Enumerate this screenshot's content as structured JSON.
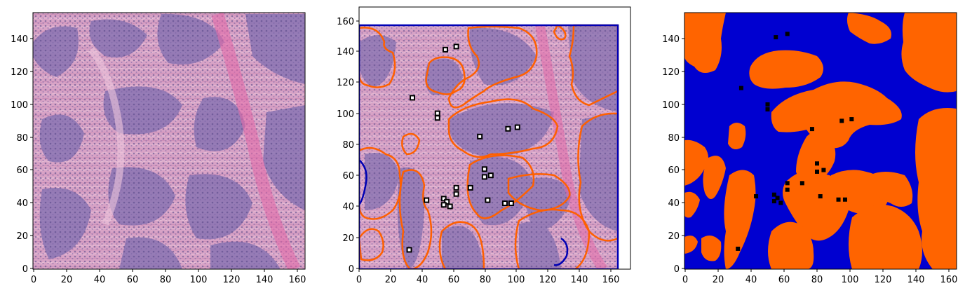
{
  "figure": {
    "panels": [
      {
        "id": "he-image",
        "xticks": [
          "0",
          "20",
          "40",
          "60",
          "80",
          "100",
          "120",
          "140",
          "160"
        ],
        "yticks": [
          "0",
          "20",
          "40",
          "60",
          "80",
          "100",
          "120",
          "140"
        ]
      },
      {
        "id": "contour-overlay",
        "xticks": [
          "0",
          "20",
          "40",
          "60",
          "80",
          "100",
          "120",
          "140",
          "160"
        ],
        "yticks": [
          "0",
          "20",
          "40",
          "60",
          "80",
          "100",
          "120",
          "140",
          "160"
        ]
      },
      {
        "id": "segmentation-mask",
        "xticks": [
          "0",
          "20",
          "40",
          "60",
          "80",
          "100",
          "120",
          "140",
          "160"
        ],
        "yticks": [
          "0",
          "20",
          "40",
          "60",
          "80",
          "100",
          "120",
          "140"
        ]
      }
    ]
  },
  "chart_data": [
    {
      "type": "image",
      "xlim": [
        0,
        165
      ],
      "ylim": [
        0,
        155
      ],
      "description_colors": {
        "tissue_pink": "#d59cc0",
        "nuclei_purple": "#6b5a99"
      }
    },
    {
      "type": "image",
      "xlim": [
        0,
        165
      ],
      "ylim": [
        0,
        165
      ],
      "colors": {
        "contour_orange": "#ff6000",
        "contour_blue": "#0000b4",
        "marker": "#000000"
      },
      "points": [
        [
          55,
          141
        ],
        [
          62,
          143
        ],
        [
          34,
          110
        ],
        [
          50,
          100
        ],
        [
          50,
          97
        ],
        [
          77,
          85
        ],
        [
          95,
          90
        ],
        [
          101,
          91
        ],
        [
          80,
          64
        ],
        [
          84,
          60
        ],
        [
          80,
          59
        ],
        [
          62,
          52
        ],
        [
          71,
          52
        ],
        [
          62,
          48
        ],
        [
          43,
          44
        ],
        [
          82,
          44
        ],
        [
          54,
          45
        ],
        [
          56,
          43
        ],
        [
          54,
          41
        ],
        [
          58,
          40
        ],
        [
          93,
          42
        ],
        [
          97,
          42
        ],
        [
          32,
          12
        ]
      ]
    },
    {
      "type": "image",
      "xlim": [
        0,
        165
      ],
      "ylim": [
        0,
        155
      ],
      "colors": {
        "foreground_orange": "#ff6400",
        "background_blue": "#0000d0",
        "marker": "#000000"
      },
      "points": [
        [
          55,
          141
        ],
        [
          62,
          143
        ],
        [
          34,
          110
        ],
        [
          50,
          100
        ],
        [
          50,
          97
        ],
        [
          77,
          85
        ],
        [
          95,
          90
        ],
        [
          101,
          91
        ],
        [
          80,
          64
        ],
        [
          84,
          60
        ],
        [
          80,
          59
        ],
        [
          62,
          52
        ],
        [
          71,
          52
        ],
        [
          62,
          48
        ],
        [
          43,
          44
        ],
        [
          82,
          44
        ],
        [
          54,
          45
        ],
        [
          56,
          43
        ],
        [
          54,
          41
        ],
        [
          58,
          40
        ],
        [
          93,
          42
        ],
        [
          97,
          42
        ],
        [
          32,
          12
        ]
      ]
    }
  ]
}
